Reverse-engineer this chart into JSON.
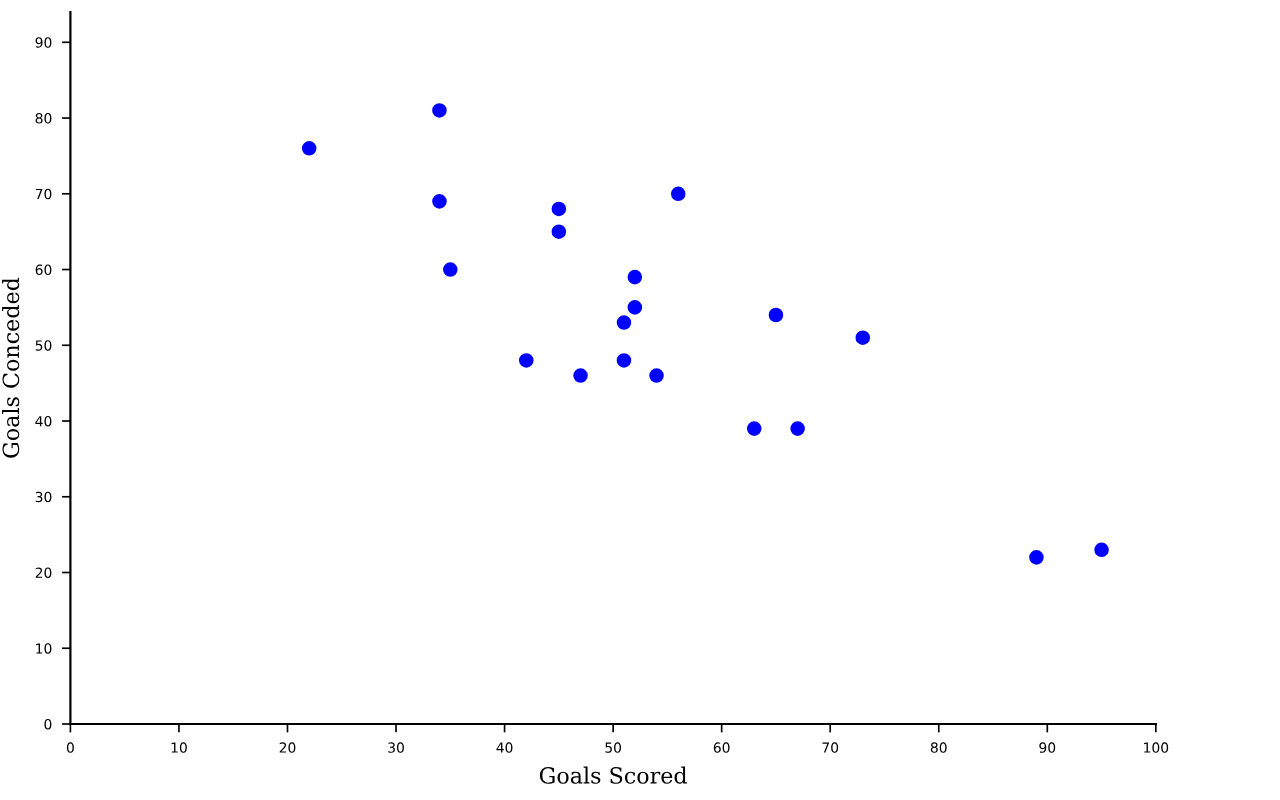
{
  "chart_data": {
    "type": "scatter",
    "xlabel": "Goals Scored",
    "ylabel": "Goals Conceded",
    "x": [
      22,
      34,
      34,
      35,
      42,
      45,
      45,
      47,
      51,
      51,
      52,
      52,
      54,
      56,
      63,
      65,
      67,
      73,
      89,
      95
    ],
    "series": [
      {
        "color": "#0000ff",
        "values": [
          76,
          81,
          69,
          60,
          48,
          68,
          65,
          46,
          53,
          48,
          59,
          55,
          46,
          70,
          39,
          54,
          39,
          51,
          22,
          23
        ]
      }
    ],
    "xlim": [
      0,
      100
    ],
    "ylim": [
      0,
      94
    ],
    "xticks": [
      0,
      10,
      20,
      30,
      40,
      50,
      60,
      70,
      80,
      90,
      100
    ],
    "yticks": [
      0,
      10,
      20,
      30,
      40,
      50,
      60,
      70,
      80,
      90
    ],
    "grid": false,
    "legend": false,
    "marker": "circle"
  }
}
